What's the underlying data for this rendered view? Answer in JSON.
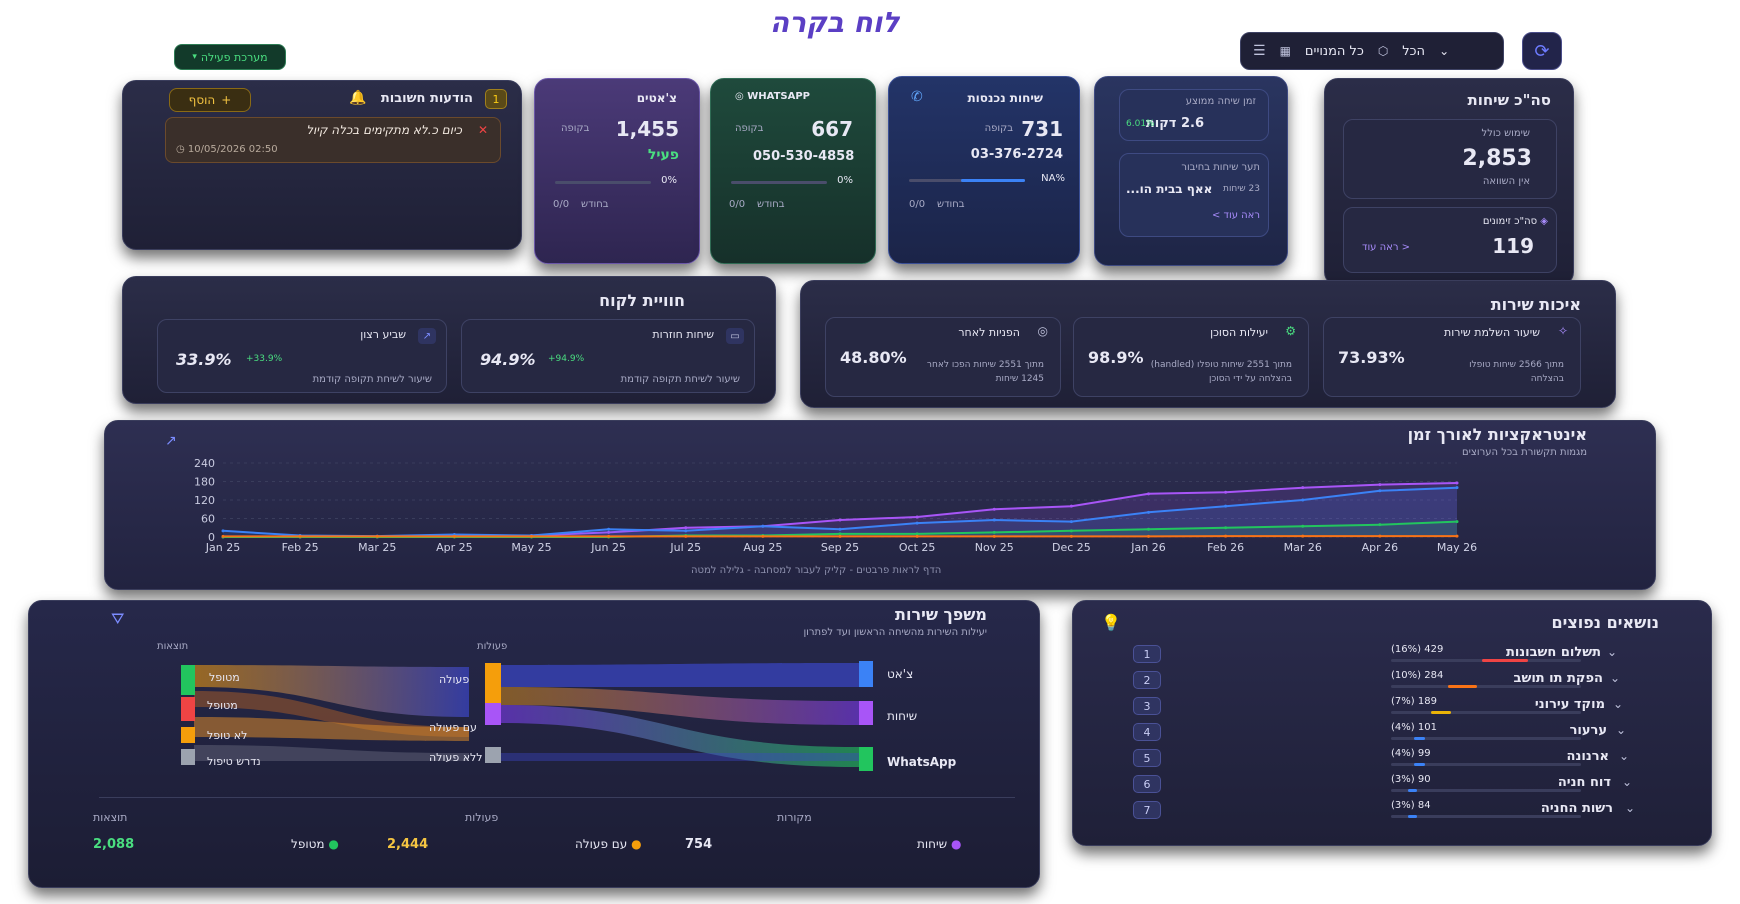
{
  "header": {
    "title": "לוח בקרה",
    "system_status": "מערכת פעילה",
    "filter_all": "הכל",
    "filter_subscribers": "כל המנויים"
  },
  "notices": {
    "title": "הודעות חשובות",
    "count": "1",
    "add_label": "הוסף",
    "item_text": "כיום כ.לא מתקימים בכלה קיול",
    "item_date": "10/05/2026 02:50"
  },
  "chats": {
    "title": "צ'אטים",
    "value": "1,455",
    "period": "בקופה",
    "status": "פעיל",
    "percent": "0%",
    "month": "בחודש",
    "month_value": "0/0",
    "progress": 0,
    "color": "#4b3a78"
  },
  "whatsapp": {
    "title": "WHATSAPP",
    "value": "667",
    "period": "בקופה",
    "phone": "050-530-4858",
    "percent": "0%",
    "month": "בחודש",
    "month_value": "0/0",
    "progress": 0,
    "color": "#1f4a3c"
  },
  "incoming": {
    "title": "שיחות נכנסות",
    "value": "731",
    "period": "בקופה",
    "phone": "03-376-2724",
    "percent": "NA%",
    "month": "בחודש",
    "month_value": "0/0",
    "progress": 0.55,
    "color": "#233468"
  },
  "timing": {
    "avg_title": "זמן שיחה ממוצע",
    "avg_value": "2.6 דקות",
    "avg_change": "6.01%",
    "wait_title": "תער שיחות בחיבור",
    "wait_count": "23 שיחות",
    "wait_value": "אאף בבית הו...",
    "see_more": "ראה עוד >"
  },
  "total_calls": {
    "title": "סה\"כ שיחות",
    "usage_label": "שימוש כולל",
    "usage_value": "2,853",
    "compare": "אין השוואה",
    "orders_label": "סה\"כ זימונים",
    "orders_value": "119",
    "see_more": "< ראה עוד"
  },
  "customer_experience": {
    "title": "חוויית לקוח",
    "items": [
      {
        "label": "שביע רצון",
        "value": "33.9%",
        "delta": "+33.9%",
        "sub": "שיעור לשיחת תקופה קודמת"
      },
      {
        "label": "שיחות חוזרות",
        "value": "94.9%",
        "delta": "+94.9%",
        "sub": "שיעור לשיחת תקופה קודמת"
      }
    ]
  },
  "service_quality": {
    "title": "איכות שירות",
    "items": [
      {
        "label": "הפניות לאחר",
        "value": "48.80%",
        "sub1": "מתוך 2551 שיחות הפכו לאחר",
        "sub2": "1245 שיחות"
      },
      {
        "label": "יעילות הסוכן",
        "value": "98.9%",
        "sub1": "מתוך 2551 שיחות טופלו (handled)",
        "sub2": "בהצלחה על ידי הסוכן"
      },
      {
        "label": "שיעור השלמת שירות",
        "value": "73.93%",
        "sub1": "מתוך 2566 שיחות טופלו",
        "sub2": "בהצלחה"
      }
    ]
  },
  "timeline": {
    "title": "אינטראקציות לאורך זמן",
    "subtitle": "מגמות תקשורת בכל הערוצים",
    "hint": "הדף לראות פרבטים - קליק לעבור למסחבה - גלילה למטה"
  },
  "chart_data": {
    "type": "line",
    "x": [
      "Jan 25",
      "Feb 25",
      "Mar 25",
      "Apr 25",
      "May 25",
      "Jun 25",
      "Jul 25",
      "Aug 25",
      "Sep 25",
      "Oct 25",
      "Nov 25",
      "Dec 25",
      "Jan 26",
      "Feb 26",
      "Mar 26",
      "Apr 26",
      "May 26"
    ],
    "yticks": [
      0,
      60,
      120,
      180,
      240
    ],
    "ylim": [
      0,
      240
    ],
    "grid": true,
    "series": [
      {
        "color": "#a855f7",
        "values": [
          0,
          0,
          0,
          2,
          5,
          15,
          30,
          35,
          55,
          65,
          90,
          100,
          140,
          145,
          160,
          170,
          175
        ]
      },
      {
        "color": "#3b82f6",
        "values": [
          20,
          5,
          3,
          8,
          5,
          25,
          20,
          35,
          25,
          45,
          55,
          50,
          80,
          100,
          120,
          150,
          160
        ]
      },
      {
        "color": "#22c55e",
        "values": [
          0,
          0,
          0,
          0,
          0,
          0,
          5,
          5,
          10,
          10,
          15,
          20,
          25,
          30,
          35,
          40,
          50
        ]
      },
      {
        "color": "#f97316",
        "values": [
          2,
          2,
          2,
          2,
          2,
          2,
          2,
          2,
          2,
          2,
          2,
          2,
          2,
          3,
          3,
          3,
          3
        ]
      }
    ]
  },
  "funnel": {
    "title": "משפך שירות",
    "subtitle": "יעילות השירות מהשיחה הראשון ועד לפתרון",
    "col_results": "תוצאות",
    "col_actions": "פעולות",
    "sources": [
      "צ'אט",
      "שיחות",
      "WhatsApp"
    ],
    "actions": [
      "פעולה",
      "עם פעולה",
      "ללא פעולה"
    ],
    "results": [
      "מטופל",
      "מטופל",
      "לא טופל",
      "נדרש טיפול"
    ],
    "footer": {
      "results_label": "תוצאות",
      "results_value": "2,088",
      "results_item": "מטופל",
      "actions_label": "פעולות",
      "actions_value": "2,444",
      "actions_item": "עם פעולה",
      "sources_label": "מקורות",
      "sources_value": "754",
      "sources_item": "שיחות"
    }
  },
  "topics": {
    "title": "נושאים נפוצים",
    "items": [
      {
        "rank": "1",
        "name": "תשלום חשבונות",
        "stat": "429 (16%)",
        "share": 0.16,
        "color": "#ef4444"
      },
      {
        "rank": "2",
        "name": "הפקת תו תושב",
        "stat": "284 (10%)",
        "share": 0.1,
        "color": "#f97316"
      },
      {
        "rank": "3",
        "name": "מוקד עירוני",
        "stat": "189 (7%)",
        "share": 0.07,
        "color": "#eab308"
      },
      {
        "rank": "4",
        "name": "ערעור",
        "stat": "101 (4%)",
        "share": 0.04,
        "color": "#3b82f6"
      },
      {
        "rank": "5",
        "name": "ארנונה",
        "stat": "99 (4%)",
        "share": 0.04,
        "color": "#3b82f6"
      },
      {
        "rank": "6",
        "name": "דוח חניה",
        "stat": "90 (3%)",
        "share": 0.03,
        "color": "#3b82f6"
      },
      {
        "rank": "7",
        "name": "רשות החניה",
        "stat": "84 (3%)",
        "share": 0.03,
        "color": "#3b82f6"
      }
    ]
  }
}
